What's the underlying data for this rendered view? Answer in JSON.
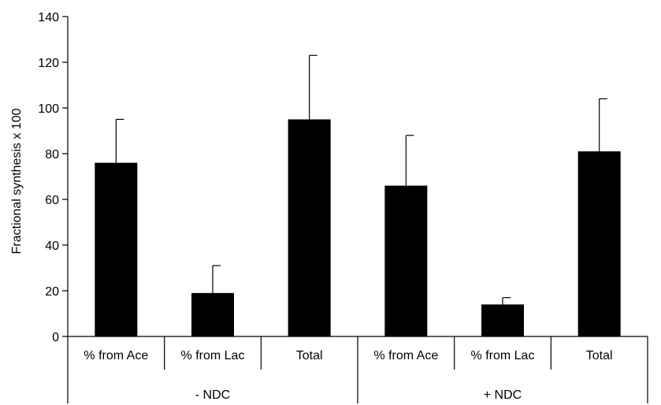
{
  "chart_data": {
    "type": "bar",
    "title": "",
    "xlabel": "",
    "ylabel": "Fractional synthesis x 100",
    "ylim": [
      0,
      140
    ],
    "yticks": [
      0,
      20,
      40,
      60,
      80,
      100,
      120,
      140
    ],
    "grid": false,
    "legend": "none",
    "bar_color": "#000000",
    "groups": [
      {
        "label": "- NDC",
        "categories": [
          "% from Ace",
          "% from Lac",
          "Total"
        ]
      },
      {
        "label": "+ NDC",
        "categories": [
          "% from Ace",
          "% from Lac",
          "Total"
        ]
      }
    ],
    "categories": [
      "% from Ace",
      "% from Lac",
      "Total",
      "% from Ace",
      "% from Lac",
      "Total"
    ],
    "values": [
      76,
      19,
      95,
      66,
      14,
      81
    ],
    "errors": [
      19,
      12,
      28,
      22,
      3,
      23
    ]
  }
}
